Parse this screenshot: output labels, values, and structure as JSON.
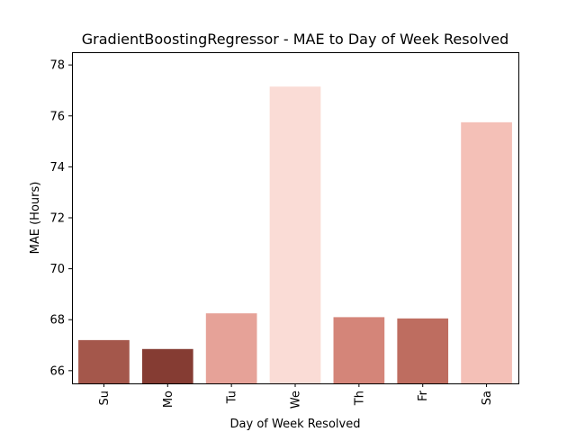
{
  "chart_data": {
    "type": "bar",
    "title": "GradientBoostingRegressor - MAE to Day of Week Resolved",
    "xlabel": "Day of Week Resolved",
    "ylabel": "MAE (Hours)",
    "categories": [
      "Su",
      "Mo",
      "Tu",
      "We",
      "Th",
      "Fr",
      "Sa"
    ],
    "values": [
      67.2,
      66.85,
      68.25,
      77.15,
      68.1,
      68.05,
      75.75
    ],
    "colors": [
      "#a4574b",
      "#853c33",
      "#e6a298",
      "#fadcd6",
      "#d48579",
      "#be6d60",
      "#f4c0b7"
    ],
    "ylim": [
      65.5,
      78.5
    ],
    "yticks": [
      66,
      68,
      70,
      72,
      74,
      76,
      78
    ],
    "grid": false
  }
}
